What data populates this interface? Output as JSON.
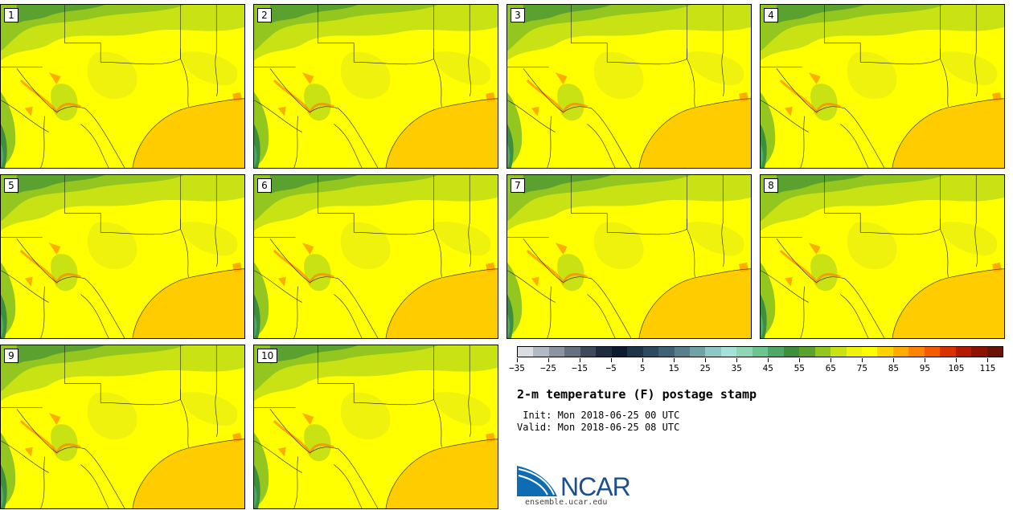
{
  "members": [
    "1",
    "2",
    "3",
    "4",
    "5",
    "6",
    "7",
    "8",
    "9",
    "10"
  ],
  "colorbar": {
    "colors": [
      "#dadde2",
      "#b3b9c2",
      "#8c94a1",
      "#66707f",
      "#3e4a5b",
      "#1f2b3f",
      "#0e1a2e",
      "#1e3448",
      "#2e4a5e",
      "#3f6374",
      "#57808a",
      "#71a3a6",
      "#8ec7c4",
      "#a3e2d6",
      "#8fd6b4",
      "#6cc48f",
      "#4fa866",
      "#3e8f3c",
      "#5aa130",
      "#93c61e",
      "#c9e214",
      "#eff20c",
      "#ffff00",
      "#ffd300",
      "#ffac00",
      "#ff8400",
      "#f65a00",
      "#d93200",
      "#b51a00",
      "#8e1200",
      "#6a1206"
    ],
    "tick_labels": [
      "−35",
      "−25",
      "−15",
      "−5",
      "5",
      "15",
      "25",
      "35",
      "45",
      "55",
      "65",
      "75",
      "85",
      "95",
      "105",
      "115"
    ]
  },
  "title": "2-m temperature (F) postage stamp",
  "init_line": " Init: Mon 2018-06-25 00 UTC",
  "valid_line": "Valid: Mon 2018-06-25 08 UTC",
  "logo_text": "NCAR",
  "logo_url": "ensemble.ucar.edu"
}
